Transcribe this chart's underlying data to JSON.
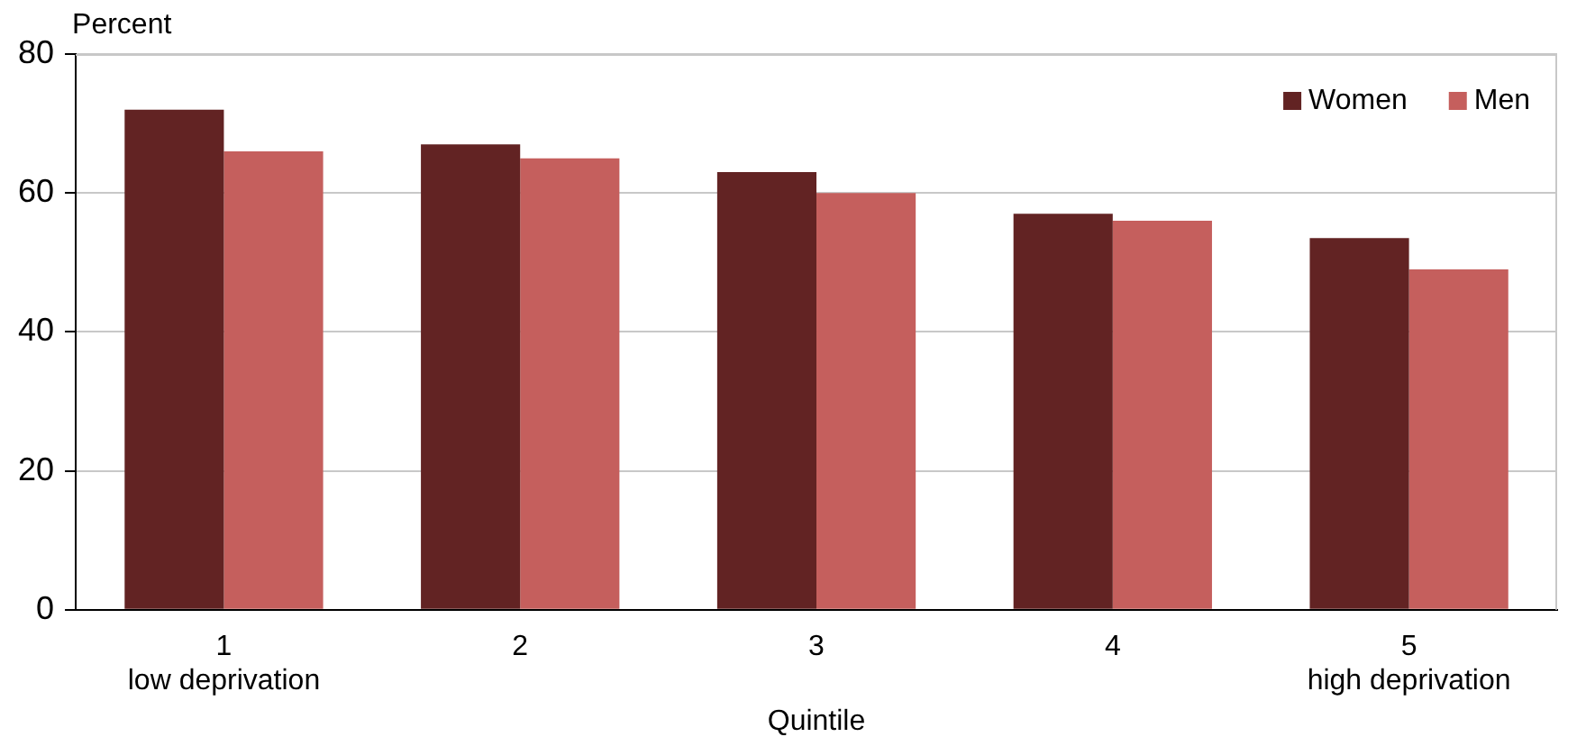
{
  "chart_data": {
    "type": "bar",
    "ylabel": "Percent",
    "xlabel": "Quintile",
    "categories": [
      "1\nlow deprivation",
      "2",
      "3",
      "4",
      "5\nhigh deprivation"
    ],
    "series": [
      {
        "name": "Women",
        "color": "#622323",
        "values": [
          72,
          67,
          63,
          57,
          53.5
        ]
      },
      {
        "name": "Men",
        "color": "#c55f5d",
        "values": [
          66,
          65,
          60,
          56,
          49
        ]
      }
    ],
    "ylim": [
      0,
      80
    ],
    "yticks": [
      0,
      20,
      40,
      60,
      80
    ],
    "grid": "y",
    "legend": "top right"
  }
}
